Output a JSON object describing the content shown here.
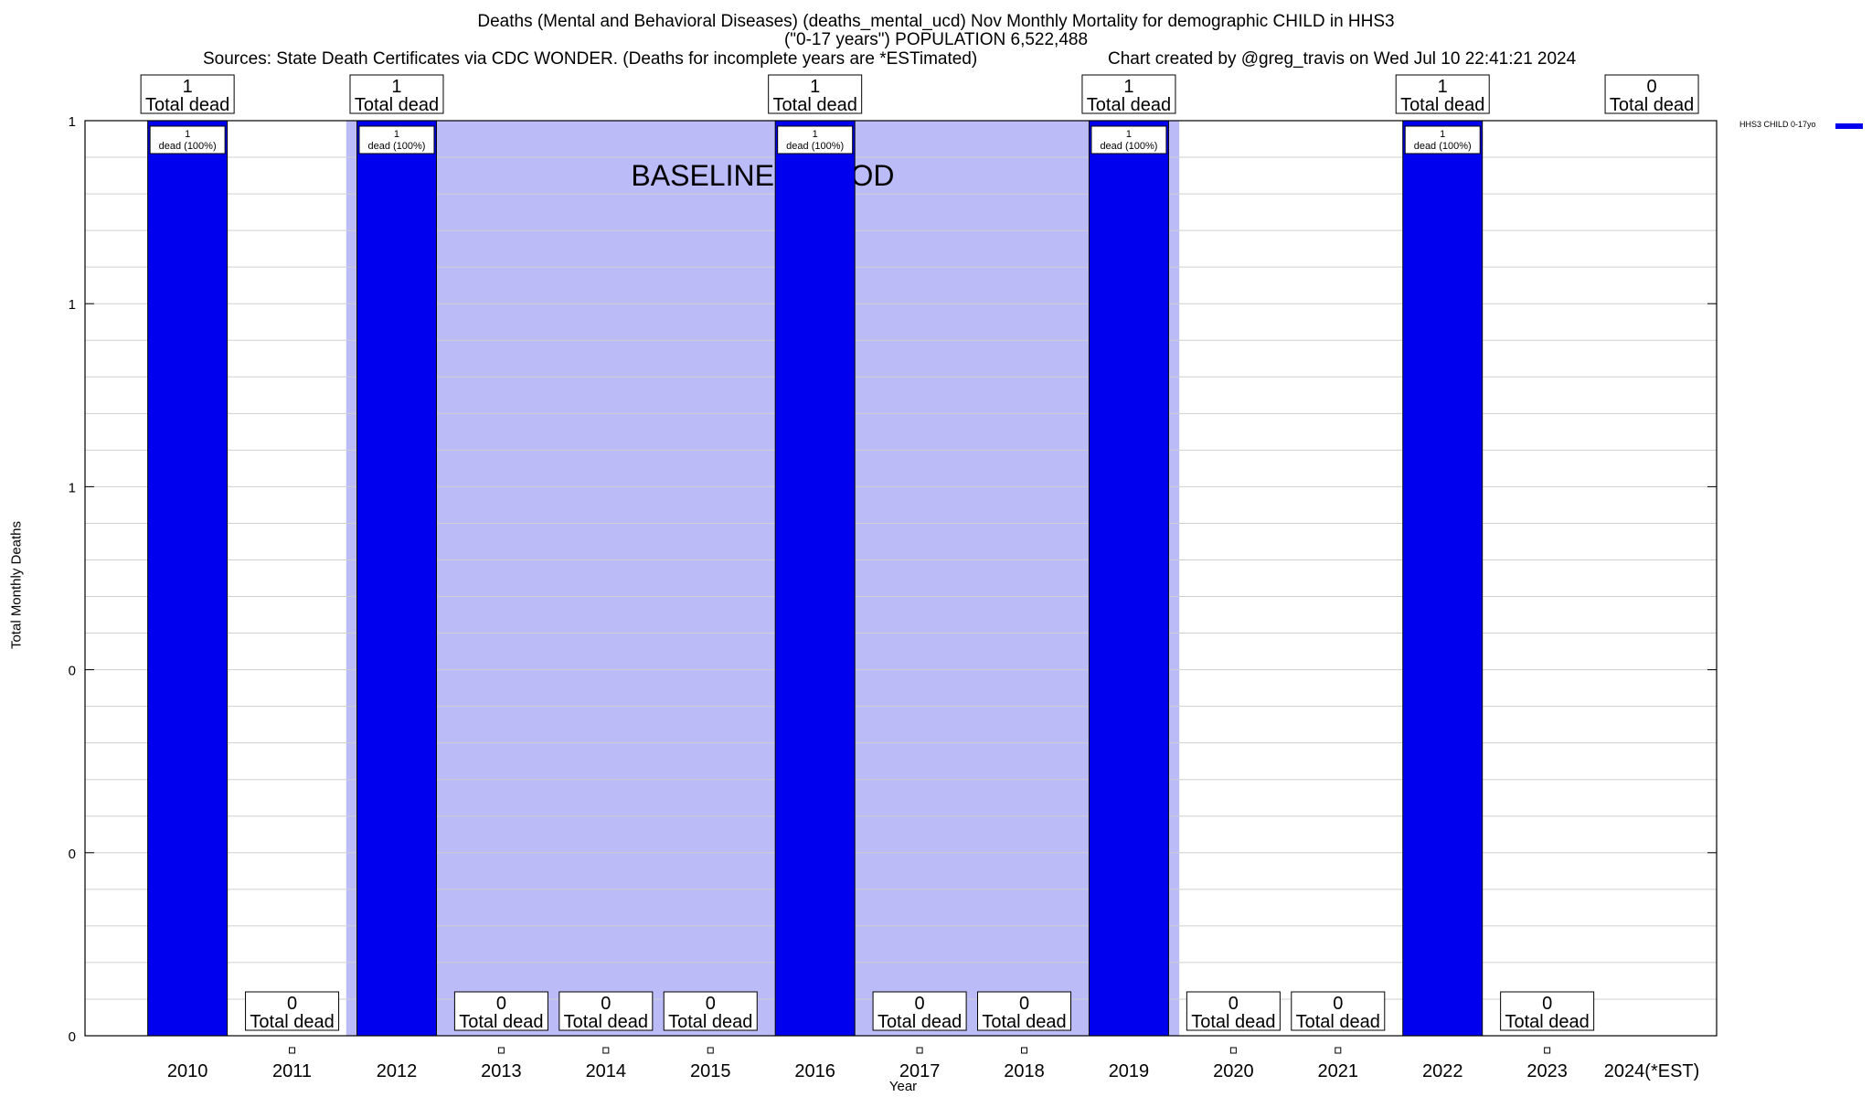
{
  "header": {
    "title": "Deaths (Mental and Behavioral Diseases) (deaths_mental_ucd) Nov Monthly Mortality for demographic CHILD in HHS3",
    "subtitle": "(\"0-17 years\") POPULATION 6,522,488",
    "sources": "Sources: State Death Certificates via CDC WONDER. (Deaths for incomplete years are *ESTimated)",
    "credit": "Chart created by @greg_travis on Wed Jul 10 22:41:21 2024"
  },
  "chart_data": {
    "type": "bar",
    "title": "Deaths (Mental and Behavioral Diseases) (deaths_mental_ucd) Nov Monthly Mortality for demographic CHILD in HHS3",
    "xlabel": "Year",
    "ylabel": "Total Monthly Deaths",
    "categories": [
      "2010",
      "2011",
      "2012",
      "2013",
      "2014",
      "2015",
      "2016",
      "2017",
      "2018",
      "2019",
      "2020",
      "2021",
      "2022",
      "2023",
      "2024(*EST)"
    ],
    "series": [
      {
        "name": "HHS3 CHILD 0-17yo",
        "color": "#0000ee",
        "values": [
          1,
          0,
          1,
          0,
          0,
          0,
          1,
          0,
          0,
          1,
          0,
          0,
          1,
          0,
          0
        ]
      }
    ],
    "total_labels": [
      "1\nTotal dead",
      "0\nTotal dead",
      "1\nTotal dead",
      "0\nTotal dead",
      "0\nTotal dead",
      "0\nTotal dead",
      "1\nTotal dead",
      "0\nTotal dead",
      "0\nTotal dead",
      "1\nTotal dead",
      "0\nTotal dead",
      "0\nTotal dead",
      "1\nTotal dead",
      "0\nTotal dead",
      "0\nTotal dead"
    ],
    "bar_labels": [
      "1\ndead (100%)",
      "",
      "1\ndead (100%)",
      "",
      "",
      "",
      "1\ndead (100%)",
      "",
      "",
      "1\ndead (100%)",
      "",
      "",
      "1\ndead (100%)",
      "",
      ""
    ],
    "ylim": [
      0,
      1
    ],
    "yticks": [
      0,
      0.2,
      0.4,
      0.6,
      0.8,
      1
    ],
    "ytick_labels": [
      "0",
      "0",
      "0",
      "1",
      "1",
      "1"
    ],
    "grid": true,
    "baseline_period": {
      "label": "BASELINE PERIOD",
      "start": "2012",
      "end": "2019",
      "color": "#bbbbf8"
    },
    "legend_position": "top-right"
  }
}
